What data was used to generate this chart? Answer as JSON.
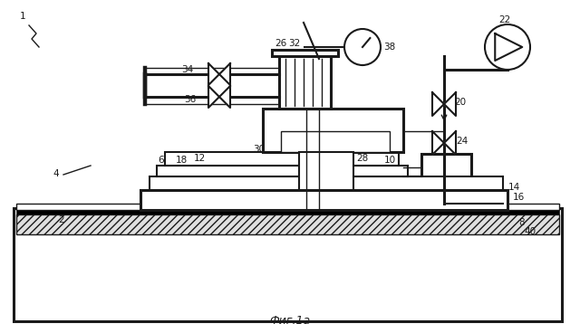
{
  "bg_color": "#ffffff",
  "line_color": "#1a1a1a",
  "title_text": "Фиг.1a"
}
